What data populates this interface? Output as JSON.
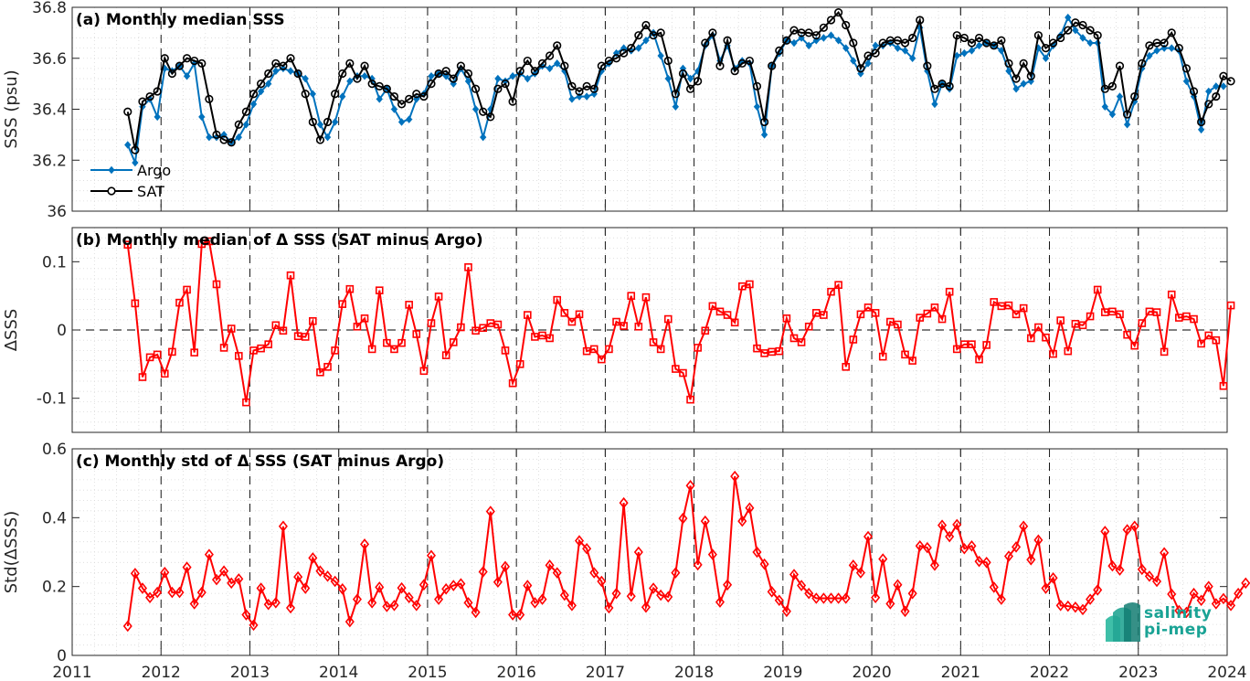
{
  "chart_data": [
    {
      "type": "line",
      "title": "(a) Monthly median SSS",
      "xlabel": "",
      "ylabel": "SSS (psu)",
      "xlim": [
        2011,
        2024
      ],
      "ylim": [
        36,
        36.8
      ],
      "xticks": [
        "2011",
        "2012",
        "2013",
        "2014",
        "2015",
        "2016",
        "2017",
        "2018",
        "2019",
        "2020",
        "2021",
        "2022",
        "2023",
        "2024"
      ],
      "yticks": [
        "36",
        "36.2",
        "36.4",
        "36.6",
        "36.8"
      ],
      "legend": "bottom-left",
      "grid": "dotted",
      "x_start": "2011-08",
      "series": [
        {
          "name": "Argo",
          "color": "#0072BD",
          "marker": "diamond",
          "values": [
            36.26,
            36.19,
            36.41,
            36.44,
            36.37,
            36.56,
            36.55,
            36.57,
            36.53,
            36.58,
            36.37,
            36.29,
            36.29,
            36.3,
            36.27,
            36.29,
            36.34,
            36.42,
            36.47,
            36.5,
            36.55,
            36.56,
            36.55,
            36.54,
            36.52,
            36.46,
            36.34,
            36.29,
            36.35,
            36.45,
            36.51,
            36.53,
            36.53,
            36.52,
            36.44,
            36.48,
            36.4,
            36.35,
            36.36,
            36.44,
            36.46,
            36.53,
            36.54,
            36.53,
            36.5,
            36.56,
            36.51,
            36.4,
            36.29,
            36.4,
            36.52,
            36.51,
            36.53,
            36.54,
            36.52,
            36.54,
            36.57,
            36.56,
            36.58,
            36.55,
            36.44,
            36.45,
            36.45,
            36.46,
            36.55,
            36.58,
            36.62,
            36.64,
            36.63,
            36.64,
            36.67,
            36.7,
            36.61,
            36.52,
            36.41,
            36.56,
            36.52,
            36.55,
            36.65,
            36.69,
            36.59,
            36.65,
            36.56,
            36.59,
            36.58,
            36.41,
            36.3,
            36.57,
            36.62,
            36.67,
            36.66,
            36.68,
            36.65,
            36.67,
            36.68,
            36.69,
            36.67,
            36.64,
            36.59,
            36.54,
            36.58,
            36.65,
            36.65,
            36.66,
            36.64,
            36.63,
            36.6,
            36.72,
            36.55,
            36.42,
            36.5,
            36.48,
            36.61,
            36.62,
            36.63,
            36.65,
            36.66,
            36.65,
            36.63,
            36.55,
            36.48,
            36.5,
            36.51,
            36.64,
            36.6,
            36.65,
            36.69,
            36.76,
            36.71,
            36.68,
            36.66,
            36.66,
            36.41,
            36.38,
            36.45,
            36.34,
            36.43,
            36.56,
            36.61,
            36.63,
            36.64,
            36.64,
            36.63,
            36.51,
            36.45,
            36.32,
            36.47,
            36.49,
            36.49
          ]
        },
        {
          "name": "SAT",
          "color": "#000000",
          "marker": "circle",
          "values": [
            36.39,
            36.24,
            36.43,
            36.45,
            36.47,
            36.6,
            36.54,
            36.57,
            36.6,
            36.59,
            36.58,
            36.44,
            36.3,
            36.28,
            36.27,
            36.34,
            36.39,
            36.46,
            36.5,
            36.54,
            36.58,
            36.57,
            36.6,
            36.54,
            36.46,
            36.35,
            36.28,
            36.35,
            36.46,
            36.54,
            36.58,
            36.52,
            36.57,
            36.5,
            36.49,
            36.48,
            36.45,
            36.42,
            36.44,
            36.46,
            36.45,
            36.5,
            36.54,
            36.55,
            36.52,
            36.57,
            36.54,
            36.48,
            36.39,
            36.37,
            36.48,
            36.5,
            36.43,
            36.55,
            36.59,
            36.55,
            36.58,
            36.61,
            36.65,
            36.57,
            36.49,
            36.47,
            36.49,
            36.48,
            36.57,
            36.59,
            36.6,
            36.62,
            36.64,
            36.69,
            36.73,
            36.69,
            36.7,
            36.59,
            36.46,
            36.54,
            36.48,
            36.51,
            36.66,
            36.7,
            36.57,
            36.67,
            36.55,
            36.58,
            36.59,
            36.49,
            36.35,
            36.57,
            36.63,
            36.67,
            36.71,
            36.7,
            36.7,
            36.69,
            36.72,
            36.75,
            36.78,
            36.73,
            36.66,
            36.56,
            36.61,
            36.62,
            36.66,
            36.67,
            36.67,
            36.66,
            36.68,
            36.75,
            36.57,
            36.48,
            36.5,
            36.49,
            36.69,
            36.68,
            36.66,
            36.68,
            36.66,
            36.65,
            36.67,
            36.58,
            36.52,
            36.58,
            36.53,
            36.69,
            36.64,
            36.66,
            36.68,
            36.71,
            36.74,
            36.73,
            36.71,
            36.69,
            36.48,
            36.49,
            36.57,
            36.38,
            36.45,
            36.58,
            36.65,
            36.66,
            36.66,
            36.7,
            36.64,
            36.56,
            36.47,
            36.35,
            36.42,
            36.45,
            36.53,
            36.51
          ]
        }
      ]
    },
    {
      "type": "line",
      "title": "(b) Monthly median of Δ SSS (SAT minus Argo)",
      "xlabel": "",
      "ylabel": "ΔSSS",
      "xlim": [
        2011,
        2024
      ],
      "ylim": [
        -0.15,
        0.15
      ],
      "xticks": [
        "2011",
        "2012",
        "2013",
        "2014",
        "2015",
        "2016",
        "2017",
        "2018",
        "2019",
        "2020",
        "2021",
        "2022",
        "2023",
        "2024"
      ],
      "yticks": [
        "-0.1",
        "0",
        "0.1"
      ],
      "grid": "dotted",
      "reference_line": 0,
      "x_start": "2011-08",
      "series": [
        {
          "name": "",
          "color": "#FF0000",
          "marker": "square",
          "values": [
            0.125,
            0.039,
            -0.069,
            -0.04,
            -0.036,
            -0.064,
            -0.032,
            0.04,
            0.059,
            -0.033,
            0.126,
            0.13,
            0.067,
            -0.026,
            0.002,
            -0.038,
            -0.106,
            -0.03,
            -0.027,
            -0.021,
            0.007,
            -0.001,
            0.08,
            -0.009,
            -0.01,
            0.013,
            -0.062,
            -0.054,
            -0.03,
            0.038,
            0.06,
            0.005,
            0.017,
            -0.028,
            0.058,
            -0.019,
            -0.028,
            -0.019,
            0.037,
            -0.006,
            -0.06,
            0.01,
            0.049,
            -0.037,
            -0.018,
            0.004,
            0.092,
            -0.001,
            0.003,
            0.01,
            0.008,
            -0.03,
            -0.078,
            -0.05,
            0.022,
            -0.01,
            -0.008,
            -0.012,
            0.044,
            0.025,
            0.012,
            0.023,
            -0.031,
            -0.028,
            -0.043,
            -0.028,
            0.012,
            0.006,
            0.05,
            0.005,
            0.048,
            -0.018,
            -0.028,
            0.016,
            -0.057,
            -0.063,
            -0.102,
            -0.026,
            -0.001,
            0.035,
            0.027,
            0.022,
            0.011,
            0.064,
            0.067,
            -0.027,
            -0.034,
            -0.032,
            -0.031,
            0.017,
            -0.012,
            -0.018,
            0.005,
            0.025,
            0.022,
            0.056,
            0.066,
            -0.054,
            -0.014,
            0.023,
            0.033,
            0.025,
            -0.039,
            0.012,
            0.008,
            -0.036,
            -0.045,
            0.018,
            0.024,
            0.033,
            0.016,
            0.056,
            -0.028,
            -0.021,
            -0.021,
            -0.043,
            -0.022,
            0.041,
            0.035,
            0.036,
            0.023,
            0.032,
            -0.012,
            0.004,
            -0.011,
            -0.035,
            0.014,
            -0.031,
            0.009,
            0.007,
            0.02,
            0.059,
            0.026,
            0.027,
            0.023,
            -0.007,
            -0.023,
            0.01,
            0.027,
            0.026,
            -0.032,
            0.052,
            0.018,
            0.02,
            0.016,
            -0.02,
            -0.008,
            -0.015,
            -0.082,
            0.036
          ]
        }
      ]
    },
    {
      "type": "line",
      "title": "(c) Monthly std of Δ SSS (SAT minus Argo)",
      "xlabel": "",
      "ylabel": "Std(ΔSSS)",
      "xlim": [
        2011,
        2024
      ],
      "ylim": [
        0,
        0.6
      ],
      "xticks": [
        "2011",
        "2012",
        "2013",
        "2014",
        "2015",
        "2016",
        "2017",
        "2018",
        "2019",
        "2020",
        "2021",
        "2022",
        "2023",
        "2024"
      ],
      "yticks": [
        "0",
        "0.2",
        "0.4",
        "0.6"
      ],
      "grid": "dotted",
      "x_start": "2011-08",
      "series": [
        {
          "name": "",
          "color": "#FF0000",
          "marker": "diamond",
          "values": [
            0.085,
            0.238,
            0.195,
            0.168,
            0.183,
            0.241,
            0.183,
            0.183,
            0.256,
            0.15,
            0.183,
            0.293,
            0.22,
            0.245,
            0.21,
            0.222,
            0.118,
            0.088,
            0.195,
            0.148,
            0.153,
            0.375,
            0.138,
            0.228,
            0.195,
            0.283,
            0.245,
            0.23,
            0.215,
            0.193,
            0.098,
            0.163,
            0.323,
            0.153,
            0.198,
            0.142,
            0.145,
            0.196,
            0.168,
            0.145,
            0.205,
            0.29,
            0.163,
            0.193,
            0.203,
            0.208,
            0.153,
            0.125,
            0.243,
            0.418,
            0.213,
            0.258,
            0.118,
            0.118,
            0.203,
            0.153,
            0.163,
            0.262,
            0.24,
            0.175,
            0.145,
            0.333,
            0.31,
            0.24,
            0.215,
            0.138,
            0.18,
            0.443,
            0.172,
            0.3,
            0.14,
            0.195,
            0.175,
            0.17,
            0.24,
            0.398,
            0.493,
            0.263,
            0.39,
            0.293,
            0.155,
            0.205,
            0.52,
            0.39,
            0.428,
            0.3,
            0.265,
            0.185,
            0.16,
            0.128,
            0.235,
            0.203,
            0.18,
            0.166,
            0.166,
            0.166,
            0.166,
            0.166,
            0.262,
            0.24,
            0.345,
            0.168,
            0.28,
            0.15,
            0.205,
            0.128,
            0.18,
            0.318,
            0.313,
            0.262,
            0.378,
            0.345,
            0.38,
            0.31,
            0.318,
            0.273,
            0.27,
            0.198,
            0.163,
            0.288,
            0.315,
            0.375,
            0.278,
            0.335,
            0.195,
            0.225,
            0.145,
            0.143,
            0.14,
            0.133,
            0.163,
            0.19,
            0.36,
            0.26,
            0.248,
            0.365,
            0.375,
            0.25,
            0.23,
            0.215,
            0.298,
            0.178,
            0.13,
            0.125,
            0.18,
            0.16,
            0.2,
            0.15,
            0.165,
            0.145,
            0.18,
            0.21
          ]
        }
      ]
    }
  ],
  "logo": {
    "line1": "salinity",
    "line2": "pi-mep",
    "color": "#1aa395"
  }
}
